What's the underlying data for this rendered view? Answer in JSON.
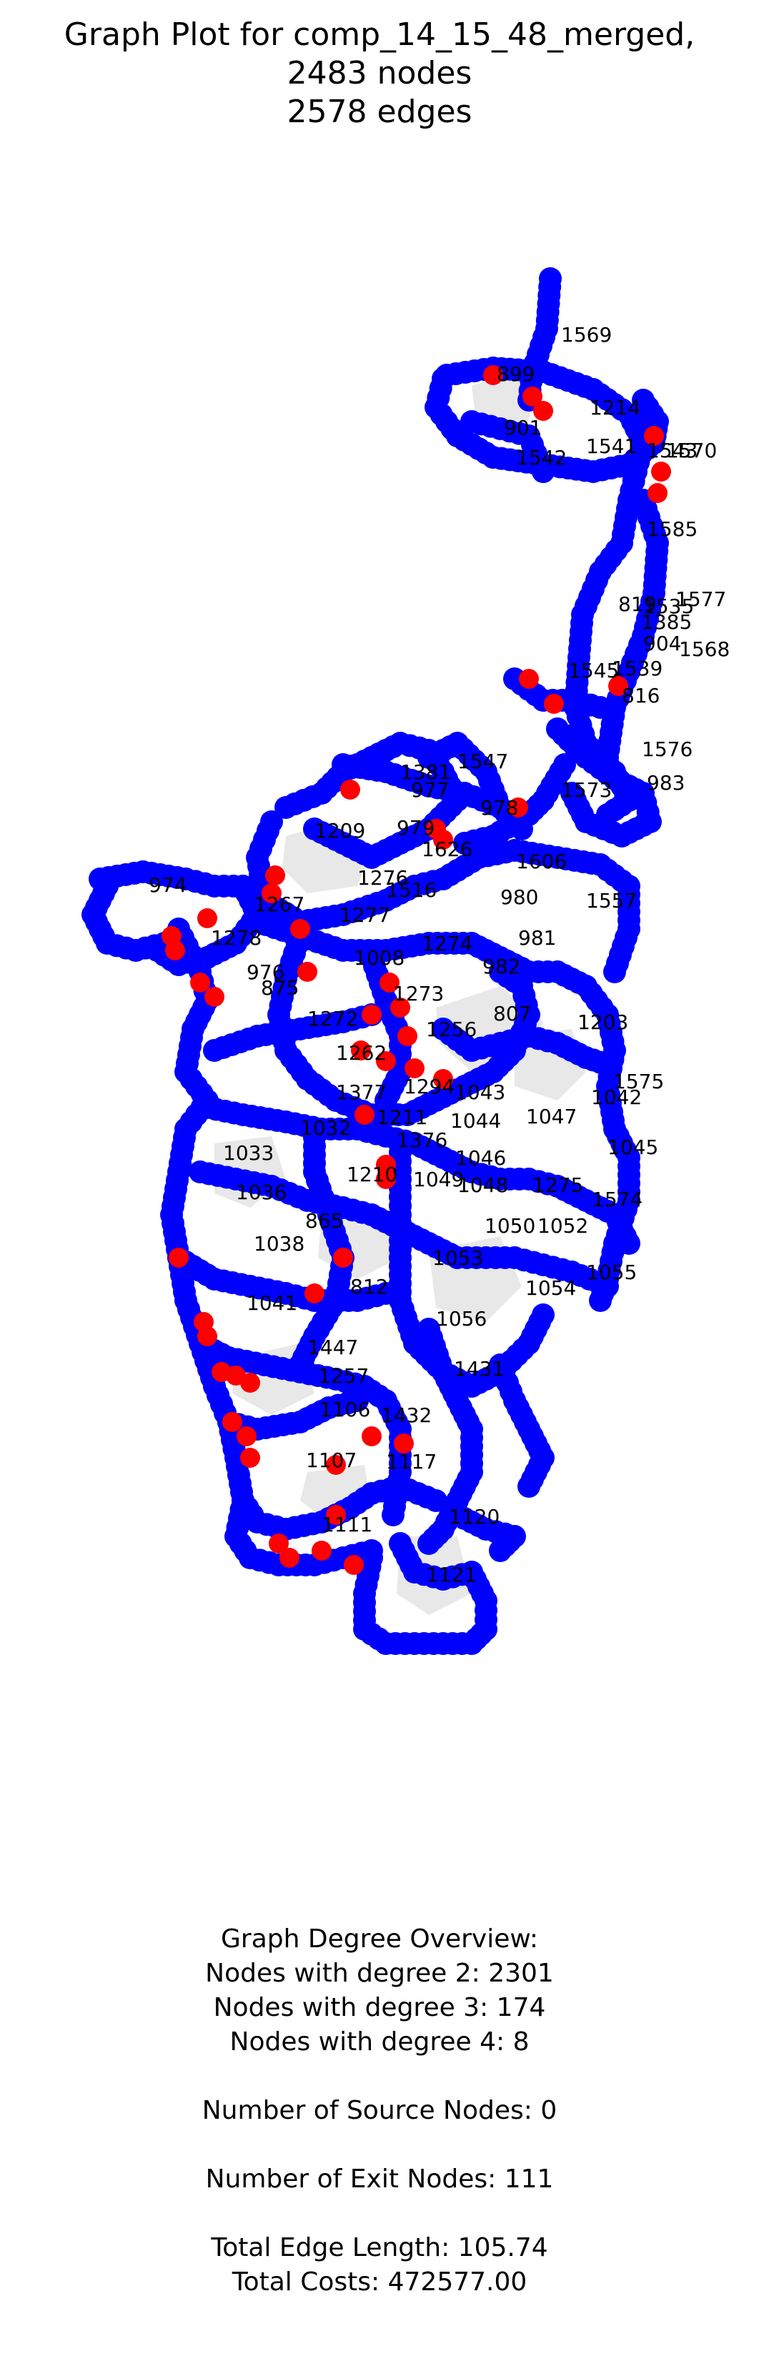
{
  "title": {
    "line1": "Graph Plot for comp_14_15_48_merged,",
    "line2": "2483 nodes",
    "line3": "2578 edges"
  },
  "colors": {
    "node": "#0000ff",
    "exit_node": "#ff0000",
    "face_fill": "#e8e8e8",
    "edge": "#000000"
  },
  "node_labels": [
    "1569",
    "899",
    "901",
    "1214",
    "1542",
    "1541",
    "1543",
    "1570",
    "1585",
    "1577",
    "819",
    "1535",
    "1385",
    "904",
    "1568",
    "1545",
    "1539",
    "816",
    "1576",
    "1547",
    "1381",
    "977",
    "983",
    "978",
    "1573",
    "979",
    "1209",
    "1626",
    "1606",
    "974",
    "1276",
    "1516",
    "1267",
    "1277",
    "980",
    "1557",
    "1278",
    "1274",
    "981",
    "976",
    "1008",
    "982",
    "875",
    "1273",
    "1272",
    "807",
    "1203",
    "1256",
    "1262",
    "1294",
    "1575",
    "1043",
    "1377",
    "1042",
    "1211",
    "1044",
    "1047",
    "1032",
    "1376",
    "1046",
    "1045",
    "1033",
    "1210",
    "1049",
    "1048",
    "1275",
    "1036",
    "1574",
    "865",
    "1050",
    "1052",
    "1038",
    "1053",
    "1055",
    "812",
    "1054",
    "1041",
    "1056",
    "1447",
    "1257",
    "1431",
    "1106",
    "1432",
    "1107",
    "1117",
    "1120",
    "1111",
    "1121"
  ],
  "summary": {
    "heading": "Graph Degree Overview:",
    "degree2": "Nodes with degree 2: 2301",
    "degree3": "Nodes with degree 3: 174",
    "degree4": "Nodes with degree 4: 8",
    "sources": "Number of Source Nodes: 0",
    "exits": "Number of Exit Nodes: 111",
    "edge_length": "Total Edge Length: 105.74",
    "costs": "Total Costs: 472577.00"
  }
}
